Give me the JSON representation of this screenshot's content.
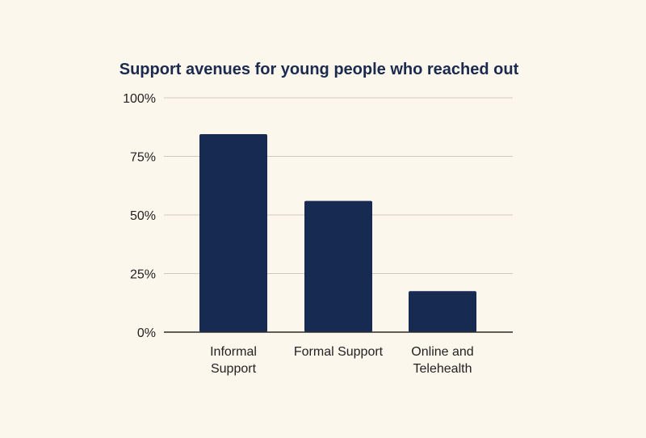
{
  "chart_data": {
    "type": "bar",
    "title": "Support avenues for young people who reached out",
    "xlabel": "",
    "ylabel": "",
    "categories": [
      [
        "Informal",
        "Support"
      ],
      [
        "Formal Support"
      ],
      [
        "Online and",
        "Telehealth"
      ]
    ],
    "values": [
      84.5,
      56,
      17.5
    ],
    "unit": "%",
    "ylim": [
      0,
      100
    ],
    "yticks": [
      0,
      25,
      50,
      75,
      100
    ],
    "ytick_labels": [
      "0%",
      "25%",
      "50%",
      "75%",
      "100%"
    ],
    "grid": true,
    "legend": "none",
    "colors": {
      "bar": "#172a52",
      "background": "#fcf7ec",
      "grid": "#cfcac0",
      "title": "#1b2b4f"
    }
  }
}
